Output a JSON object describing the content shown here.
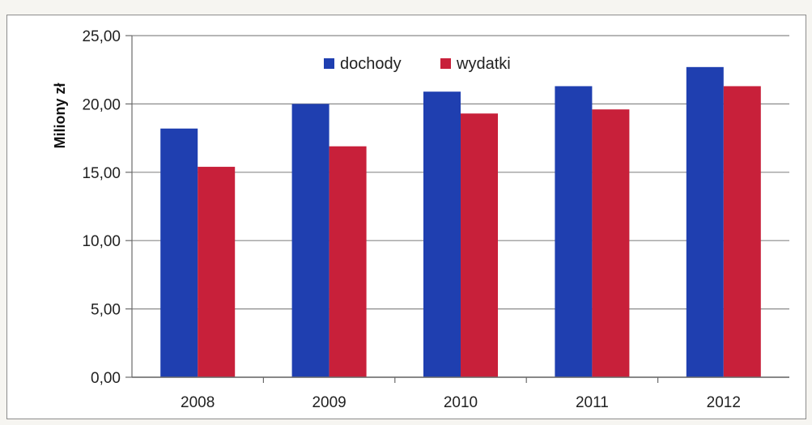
{
  "chart_data": {
    "type": "bar",
    "title": "",
    "xlabel": "",
    "ylabel": "Miliony zł",
    "categories": [
      "2008",
      "2009",
      "2010",
      "2011",
      "2012"
    ],
    "series": [
      {
        "name": "dochody",
        "color": "#1f3fb0",
        "values": [
          18.2,
          20.0,
          20.9,
          21.3,
          22.7
        ]
      },
      {
        "name": "wydatki",
        "color": "#c8203a",
        "values": [
          15.4,
          16.9,
          19.3,
          19.6,
          21.3
        ]
      }
    ],
    "ylim": [
      0,
      25
    ],
    "y_ticks": [
      "0,00",
      "5,00",
      "10,00",
      "15,00",
      "20,00",
      "25,00"
    ],
    "grid": true,
    "legend_position": "top-center"
  }
}
